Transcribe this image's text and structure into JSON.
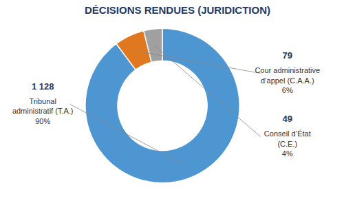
{
  "chart_data": {
    "type": "pie",
    "title": "DÉCISIONS RENDUES (JURIDICTION)",
    "categories": [
      "Tribunal\nadministratif (T.A.)",
      "Cour administrative\nd’appel (C.A.A.)",
      "Conseil d’État\n(C.E.)"
    ],
    "values": [
      1128,
      79,
      49
    ],
    "value_labels": [
      "1 128",
      "79",
      "49"
    ],
    "percentages": [
      90,
      6,
      4
    ],
    "percentage_labels": [
      "90%",
      "6%",
      "4%"
    ],
    "colors": [
      "#4E96D2",
      "#E07820",
      "#A0A0A0"
    ],
    "data_labels": true
  }
}
